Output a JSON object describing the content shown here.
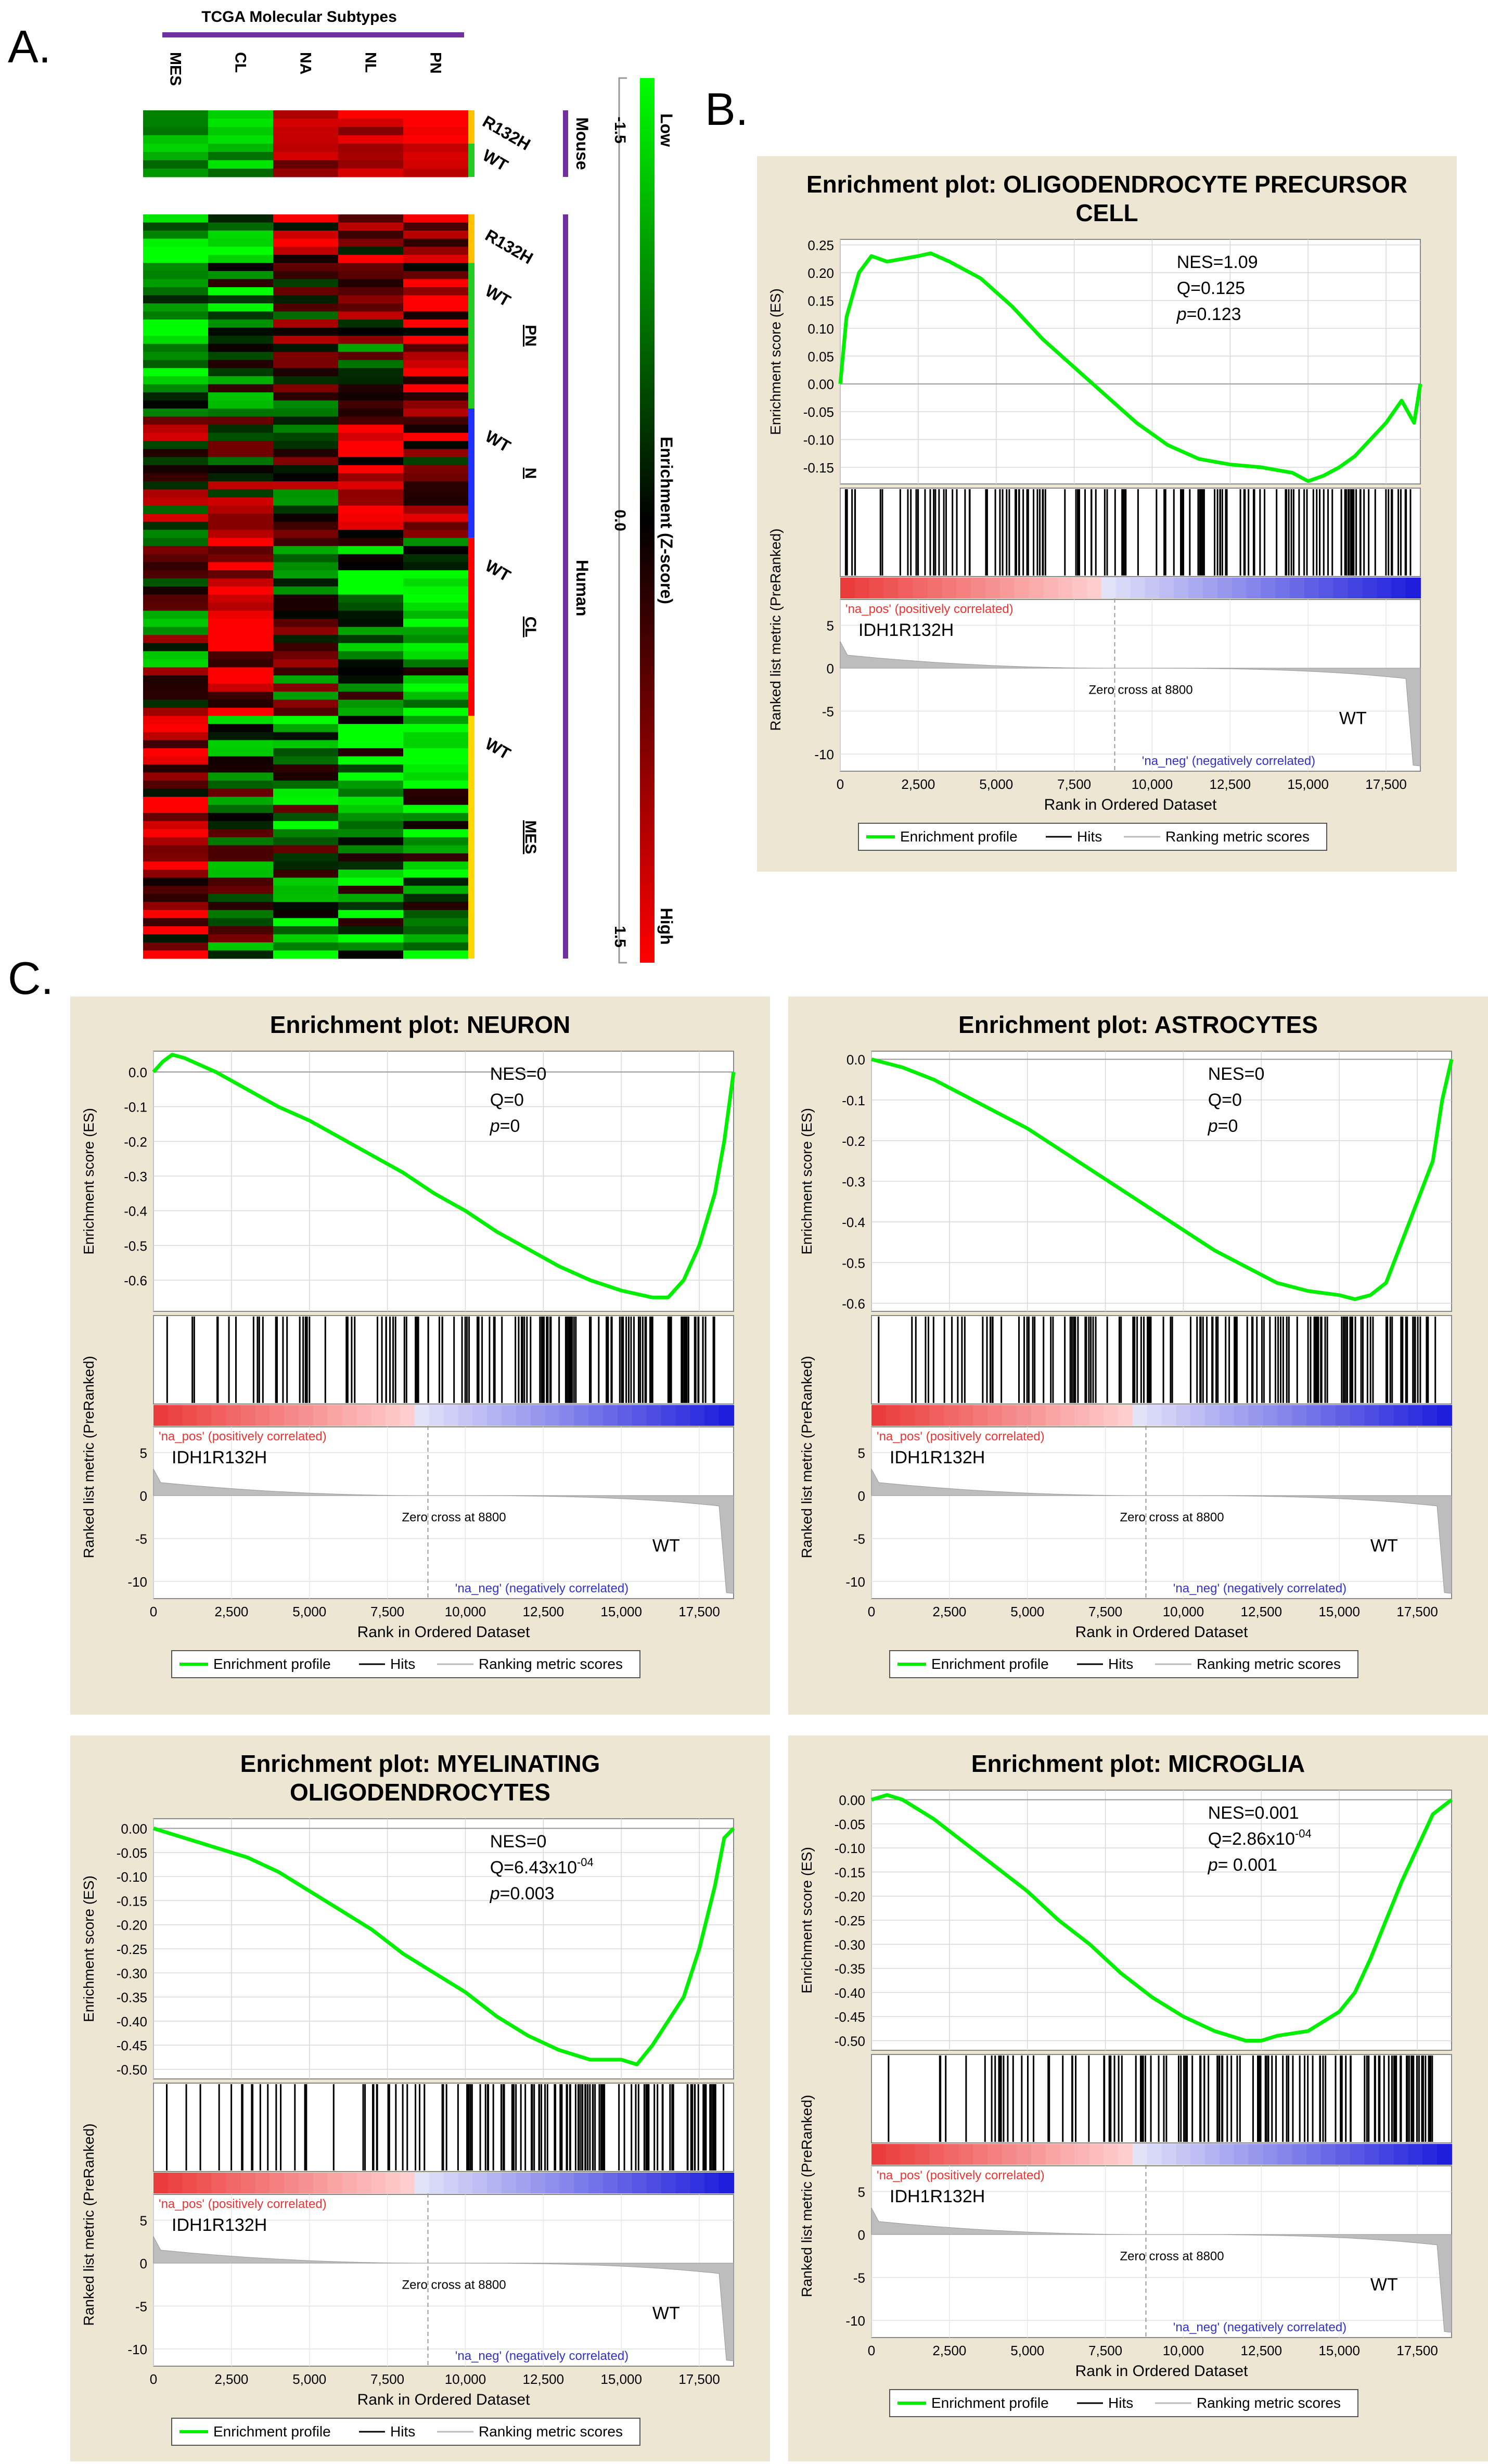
{
  "panel_labels": {
    "a": "A.",
    "b": "B.",
    "c": "C."
  },
  "heatmap": {
    "title": "TCGA Molecular Subtypes",
    "columns": [
      "MES",
      "CL",
      "NA",
      "NL",
      "PN"
    ],
    "mouse_rows": [
      "R132H",
      "WT"
    ],
    "human_rows": [
      {
        "genotype": "R132H",
        "subtype": ""
      },
      {
        "genotype": "WT",
        "subtype": "PN"
      },
      {
        "genotype": "WT",
        "subtype": "N"
      },
      {
        "genotype": "WT",
        "subtype": "CL"
      },
      {
        "genotype": "WT",
        "subtype": "MES"
      }
    ],
    "group_colors": [
      "#ffc000",
      "#22cc22",
      "#2030ff",
      "#ff0000",
      "#ffd700"
    ],
    "species": {
      "mouse": "Mouse",
      "human": "Human"
    },
    "colorbar": {
      "ticks": [
        "-1.5",
        "0.0",
        "1.5"
      ],
      "low": "Low",
      "high": "High",
      "title": "Enrichment (Z-score)",
      "low_color": "#00ff00",
      "mid_color": "#000000",
      "high_color": "#ff0000"
    }
  },
  "shared": {
    "ylabel_es": "Enrichment score (ES)",
    "ylabel_metric": "Ranked list metric (PreRanked)",
    "xlabel": "Rank in Ordered Dataset",
    "pos_label": "'na_pos' (positively correlated)",
    "neg_label": "'na_neg' (negatively correlated)",
    "pos_group": "IDH1R132H",
    "neg_group": "WT",
    "zero_cross": "Zero cross at 8800",
    "legend": [
      "Enrichment profile",
      "Hits",
      "Ranking metric scores"
    ],
    "x_ticks": [
      0,
      2500,
      5000,
      7500,
      10000,
      12500,
      15000,
      17500
    ],
    "metric_ticks": [
      5,
      0,
      -5,
      -10
    ],
    "colors": {
      "es_line": "#00ee00",
      "panel_bg": "#ede6d3",
      "pos": "#ee3333",
      "neg": "#3333cc"
    }
  },
  "chart_data": [
    {
      "type": "line",
      "title": "Enrichment plot: OLIGODENDROCYTE PRECURSOR CELL",
      "stats": [
        "NES=1.09",
        "Q=0.125",
        "p=0.123"
      ],
      "xlabel": "Rank in Ordered Dataset",
      "ylabel": "Enrichment score (ES)",
      "xlim": [
        0,
        18600
      ],
      "ylim": [
        -0.18,
        0.26
      ],
      "y_ticks": [
        "0.25",
        "0.20",
        "0.15",
        "0.10",
        "0.05",
        "0.00",
        "-0.05",
        "-0.10",
        "-0.15"
      ],
      "x": [
        0,
        200,
        600,
        1000,
        1500,
        2000,
        2500,
        2900,
        3500,
        4500,
        5500,
        6500,
        7500,
        8500,
        9500,
        10500,
        11500,
        12500,
        13500,
        14500,
        15000,
        15500,
        16000,
        16500,
        17000,
        17500,
        18000,
        18400,
        18600
      ],
      "y": [
        0.0,
        0.12,
        0.2,
        0.23,
        0.22,
        0.225,
        0.23,
        0.235,
        0.22,
        0.19,
        0.14,
        0.08,
        0.03,
        -0.02,
        -0.07,
        -0.11,
        -0.135,
        -0.145,
        -0.15,
        -0.16,
        -0.175,
        -0.165,
        -0.15,
        -0.13,
        -0.1,
        -0.07,
        -0.03,
        -0.07,
        0.0
      ]
    },
    {
      "type": "line",
      "title": "Enrichment plot: NEURON",
      "stats": [
        "NES=0",
        "Q=0",
        "p=0"
      ],
      "xlabel": "Rank in Ordered Dataset",
      "ylabel": "Enrichment score (ES)",
      "xlim": [
        0,
        18600
      ],
      "ylim": [
        -0.69,
        0.06
      ],
      "y_ticks": [
        "0.0",
        "-0.1",
        "-0.2",
        "-0.3",
        "-0.4",
        "-0.5",
        "-0.6"
      ],
      "x": [
        0,
        300,
        600,
        1000,
        1500,
        2000,
        3000,
        4000,
        5000,
        6000,
        7000,
        8000,
        9000,
        10000,
        11000,
        12000,
        13000,
        14000,
        15000,
        15500,
        16000,
        16500,
        17000,
        17500,
        18000,
        18300,
        18600
      ],
      "y": [
        0.0,
        0.03,
        0.05,
        0.04,
        0.02,
        0.0,
        -0.05,
        -0.1,
        -0.14,
        -0.19,
        -0.24,
        -0.29,
        -0.35,
        -0.4,
        -0.46,
        -0.51,
        -0.56,
        -0.6,
        -0.63,
        -0.64,
        -0.65,
        -0.65,
        -0.6,
        -0.5,
        -0.35,
        -0.2,
        0.0
      ]
    },
    {
      "type": "line",
      "title": "Enrichment plot: ASTROCYTES",
      "stats": [
        "NES=0",
        "Q=0",
        "p=0"
      ],
      "xlabel": "Rank in Ordered Dataset",
      "ylabel": "Enrichment score (ES)",
      "xlim": [
        0,
        18600
      ],
      "ylim": [
        -0.62,
        0.02
      ],
      "y_ticks": [
        "0.0",
        "-0.1",
        "-0.2",
        "-0.3",
        "-0.4",
        "-0.5",
        "-0.6"
      ],
      "x": [
        0,
        500,
        1000,
        2000,
        3000,
        4000,
        5000,
        6000,
        7000,
        8000,
        9000,
        10000,
        11000,
        12000,
        13000,
        14000,
        15000,
        15500,
        16000,
        16500,
        17000,
        17500,
        18000,
        18300,
        18600
      ],
      "y": [
        0.0,
        -0.01,
        -0.02,
        -0.05,
        -0.09,
        -0.13,
        -0.17,
        -0.22,
        -0.27,
        -0.32,
        -0.37,
        -0.42,
        -0.47,
        -0.51,
        -0.55,
        -0.57,
        -0.58,
        -0.59,
        -0.58,
        -0.55,
        -0.45,
        -0.35,
        -0.25,
        -0.1,
        0.0
      ]
    },
    {
      "type": "line",
      "title": "Enrichment plot: MYELINATING OLIGODENDROCYTES",
      "stats": [
        "NES=0",
        "Q=6.43x10^-04",
        "p=0.003"
      ],
      "xlabel": "Rank in Ordered Dataset",
      "ylabel": "Enrichment score (ES)",
      "xlim": [
        0,
        18600
      ],
      "ylim": [
        -0.52,
        0.02
      ],
      "y_ticks": [
        "0.00",
        "-0.05",
        "-0.10",
        "-0.15",
        "-0.20",
        "-0.25",
        "-0.30",
        "-0.35",
        "-0.40",
        "-0.45",
        "-0.50"
      ],
      "x": [
        0,
        500,
        1000,
        2000,
        3000,
        4000,
        5000,
        6000,
        7000,
        8000,
        9000,
        10000,
        11000,
        12000,
        13000,
        14000,
        15000,
        15500,
        16000,
        16500,
        17000,
        17500,
        18000,
        18300,
        18600
      ],
      "y": [
        0.0,
        -0.01,
        -0.02,
        -0.04,
        -0.06,
        -0.09,
        -0.13,
        -0.17,
        -0.21,
        -0.26,
        -0.3,
        -0.34,
        -0.39,
        -0.43,
        -0.46,
        -0.48,
        -0.48,
        -0.49,
        -0.45,
        -0.4,
        -0.35,
        -0.25,
        -0.12,
        -0.02,
        0.0
      ]
    },
    {
      "type": "line",
      "title": "Enrichment plot: MICROGLIA",
      "stats": [
        "NES=0.001",
        "Q=2.86x10^-04",
        "p= 0.001"
      ],
      "xlabel": "Rank in Ordered Dataset",
      "ylabel": "Enrichment score (ES)",
      "xlim": [
        0,
        18600
      ],
      "ylim": [
        -0.52,
        0.02
      ],
      "y_ticks": [
        "0.00",
        "-0.05",
        "-0.10",
        "-0.15",
        "-0.20",
        "-0.25",
        "-0.30",
        "-0.35",
        "-0.40",
        "-0.45",
        "-0.50"
      ],
      "x": [
        0,
        500,
        1000,
        2000,
        3000,
        4000,
        5000,
        6000,
        7000,
        8000,
        9000,
        10000,
        11000,
        12000,
        12500,
        13000,
        14000,
        15000,
        15500,
        16000,
        16500,
        17000,
        17500,
        18000,
        18600
      ],
      "y": [
        0.0,
        0.01,
        0.0,
        -0.04,
        -0.09,
        -0.14,
        -0.19,
        -0.25,
        -0.3,
        -0.36,
        -0.41,
        -0.45,
        -0.48,
        -0.5,
        -0.5,
        -0.49,
        -0.48,
        -0.44,
        -0.4,
        -0.33,
        -0.25,
        -0.17,
        -0.1,
        -0.03,
        0.0
      ]
    }
  ]
}
